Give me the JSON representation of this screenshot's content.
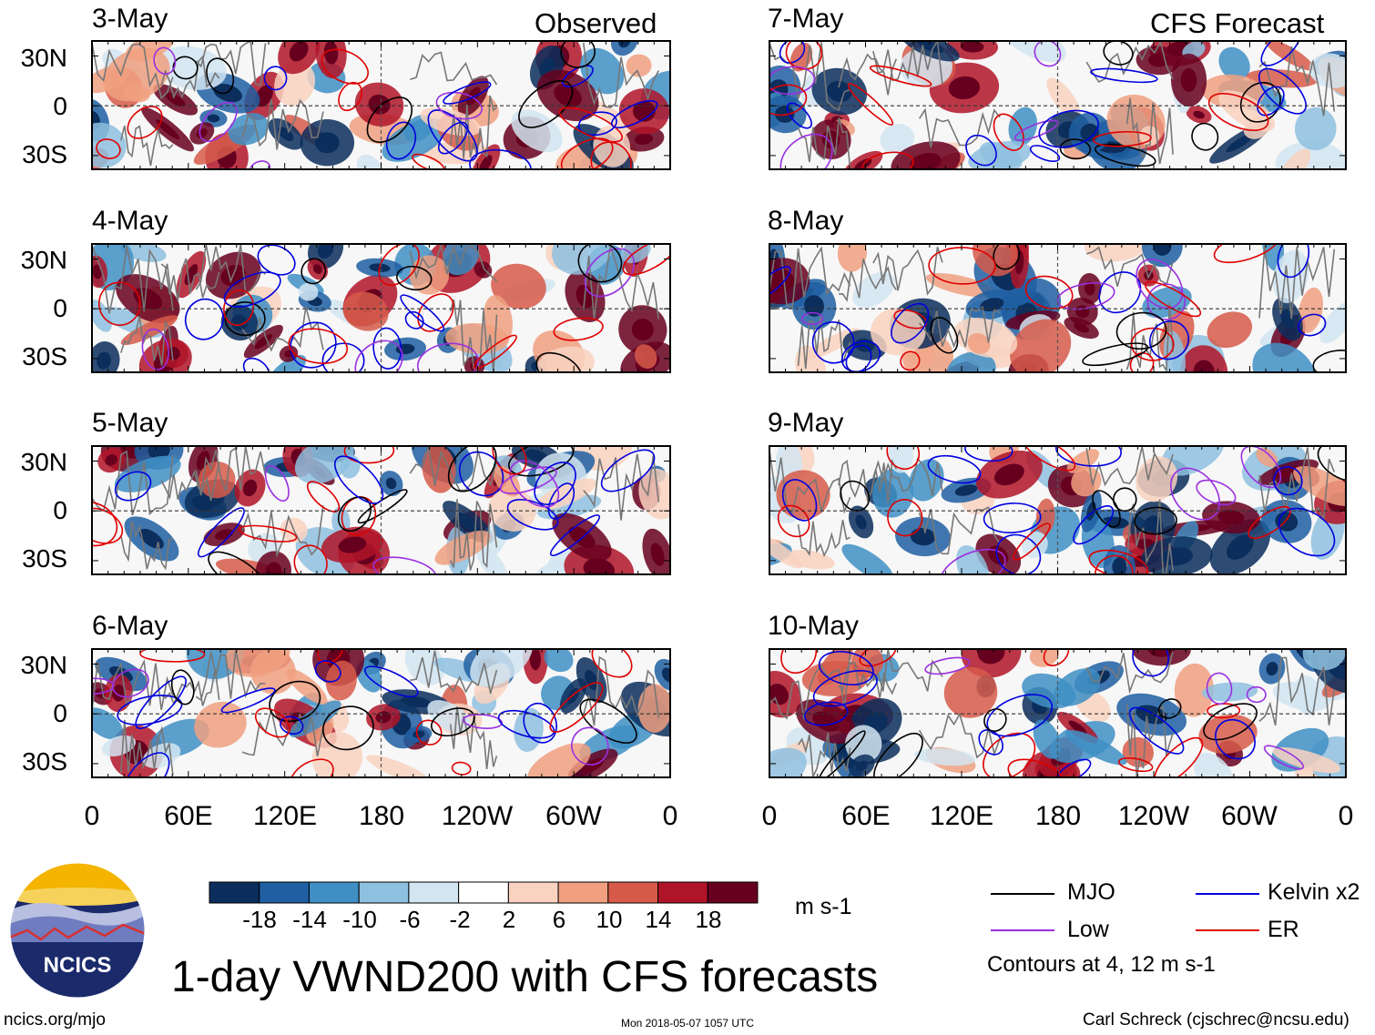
{
  "title": "1-day VWND200 with CFS forecasts",
  "headers": {
    "left": "Observed",
    "right": "CFS Forecast"
  },
  "observed_dates": [
    "3-May",
    "4-May",
    "5-May",
    "6-May"
  ],
  "forecast_dates": [
    "7-May",
    "8-May",
    "9-May",
    "10-May"
  ],
  "lat_labels": [
    "30N",
    "0",
    "30S"
  ],
  "lon_labels": [
    "0",
    "60E",
    "120E",
    "180",
    "120W",
    "60W",
    "0"
  ],
  "colorbar": {
    "labels": [
      "-18",
      "-14",
      "-10",
      "-6",
      "-2",
      "2",
      "6",
      "10",
      "14",
      "18"
    ],
    "colors": [
      "#0b2e5c",
      "#1f5fa2",
      "#3f8fc4",
      "#8ec0df",
      "#d2e5f1",
      "#ffffff",
      "#f9d2c0",
      "#f0a080",
      "#d65a4a",
      "#b01428",
      "#67001f"
    ],
    "units": "m s-1"
  },
  "legend": {
    "items": [
      {
        "label": "MJO",
        "color": "#000000"
      },
      {
        "label": "Kelvin x2",
        "color": "#0000e0"
      },
      {
        "label": "Low",
        "color": "#9a30e0"
      },
      {
        "label": "ER",
        "color": "#e00000"
      }
    ],
    "note": "Contours at 4, 12 m s-1"
  },
  "logo_text": "NCICS",
  "url": "ncics.org/mjo",
  "timestamp": "Mon 2018-05-07 1057 UTC",
  "credit": "Carl Schreck (cjschrec@ncsu.edu)"
}
